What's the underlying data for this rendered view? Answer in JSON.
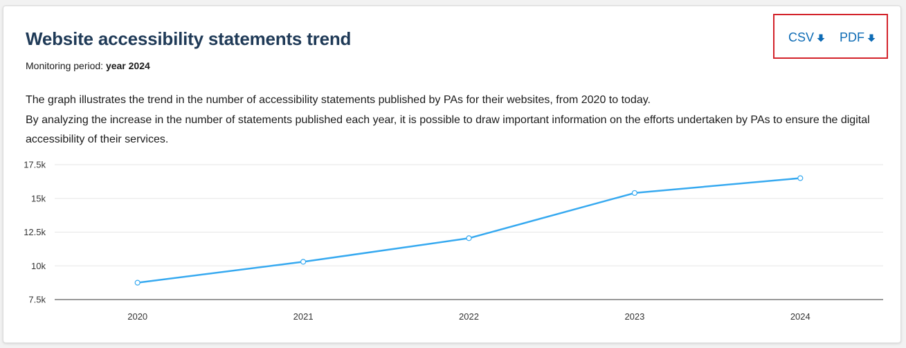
{
  "header": {
    "title": "Website accessibility statements trend",
    "period_label": "Monitoring period:",
    "period_value": "year 2024"
  },
  "description": {
    "line1": "The graph illustrates the trend in the number of accessibility statements published by PAs for their websites, from 2020 to today.",
    "line2": "By analyzing the increase in the number of statements published each year, it is possible to draw important information on the efforts undertaken by PAs to ensure the digital accessibility of their services."
  },
  "downloads": {
    "csv_label": "CSV",
    "pdf_label": "PDF",
    "icon": "download-arrow-icon",
    "highlight_color": "#d3222a",
    "link_color": "#0d6bb5"
  },
  "chart_data": {
    "type": "line",
    "x": [
      "2020",
      "2021",
      "2022",
      "2023",
      "2024"
    ],
    "series": [
      {
        "values": [
          8750,
          10300,
          12050,
          15400,
          16500
        ]
      }
    ],
    "ylim": [
      7500,
      17500
    ],
    "yticks": [
      7500,
      10000,
      12500,
      15000,
      17500
    ],
    "ytick_labels": [
      "7.5k",
      "10k",
      "12.5k",
      "15k",
      "17.5k"
    ],
    "grid": true,
    "line_color": "#36a9f0",
    "title": "",
    "xlabel": "",
    "ylabel": ""
  }
}
